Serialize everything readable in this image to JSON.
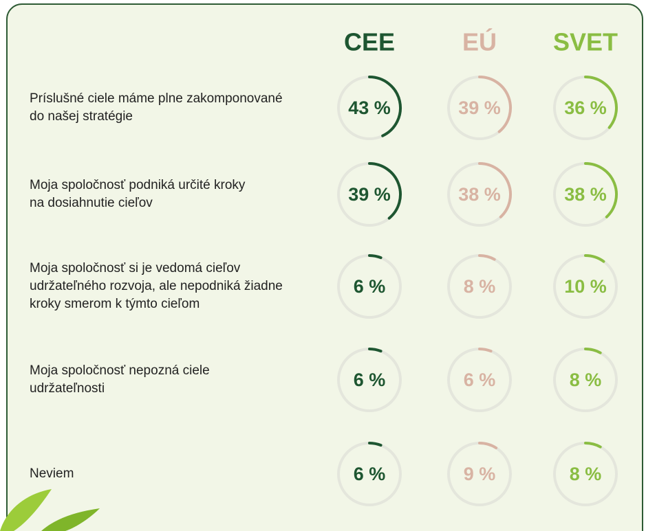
{
  "chart_data": {
    "type": "ring",
    "categories": [
      "Príslušné ciele máme plne zakomponované\ndo našej stratégie",
      "Moja spoločnosť podniká určité kroky\nna dosiahnutie cieľov",
      "Moja spoločnosť si je vedomá cieľov\nudržateľného rozvoja, ale nepodniká žiadne\nkroky smerom k týmto cieľom",
      "Moja spoločnosť nepozná ciele\nudržateľnosti",
      "Neviem"
    ],
    "series": [
      {
        "name": "CEE",
        "color": "#1e5631",
        "values": [
          43,
          39,
          6,
          6,
          6
        ],
        "value_labels": [
          "43 %",
          "39 %",
          "6 %",
          "6 %",
          "6 %"
        ]
      },
      {
        "name": "EÚ",
        "color": "#d8b3a3",
        "values": [
          39,
          38,
          8,
          6,
          9
        ],
        "value_labels": [
          "39 %",
          "38 %",
          "8 %",
          "6 %",
          "9 %"
        ]
      },
      {
        "name": "SVET",
        "color": "#8abd43",
        "values": [
          36,
          38,
          10,
          8,
          8
        ],
        "value_labels": [
          "36 %",
          "38 %",
          "10 %",
          "8 %",
          "8 %"
        ]
      }
    ],
    "ylim": [
      0,
      100
    ]
  }
}
